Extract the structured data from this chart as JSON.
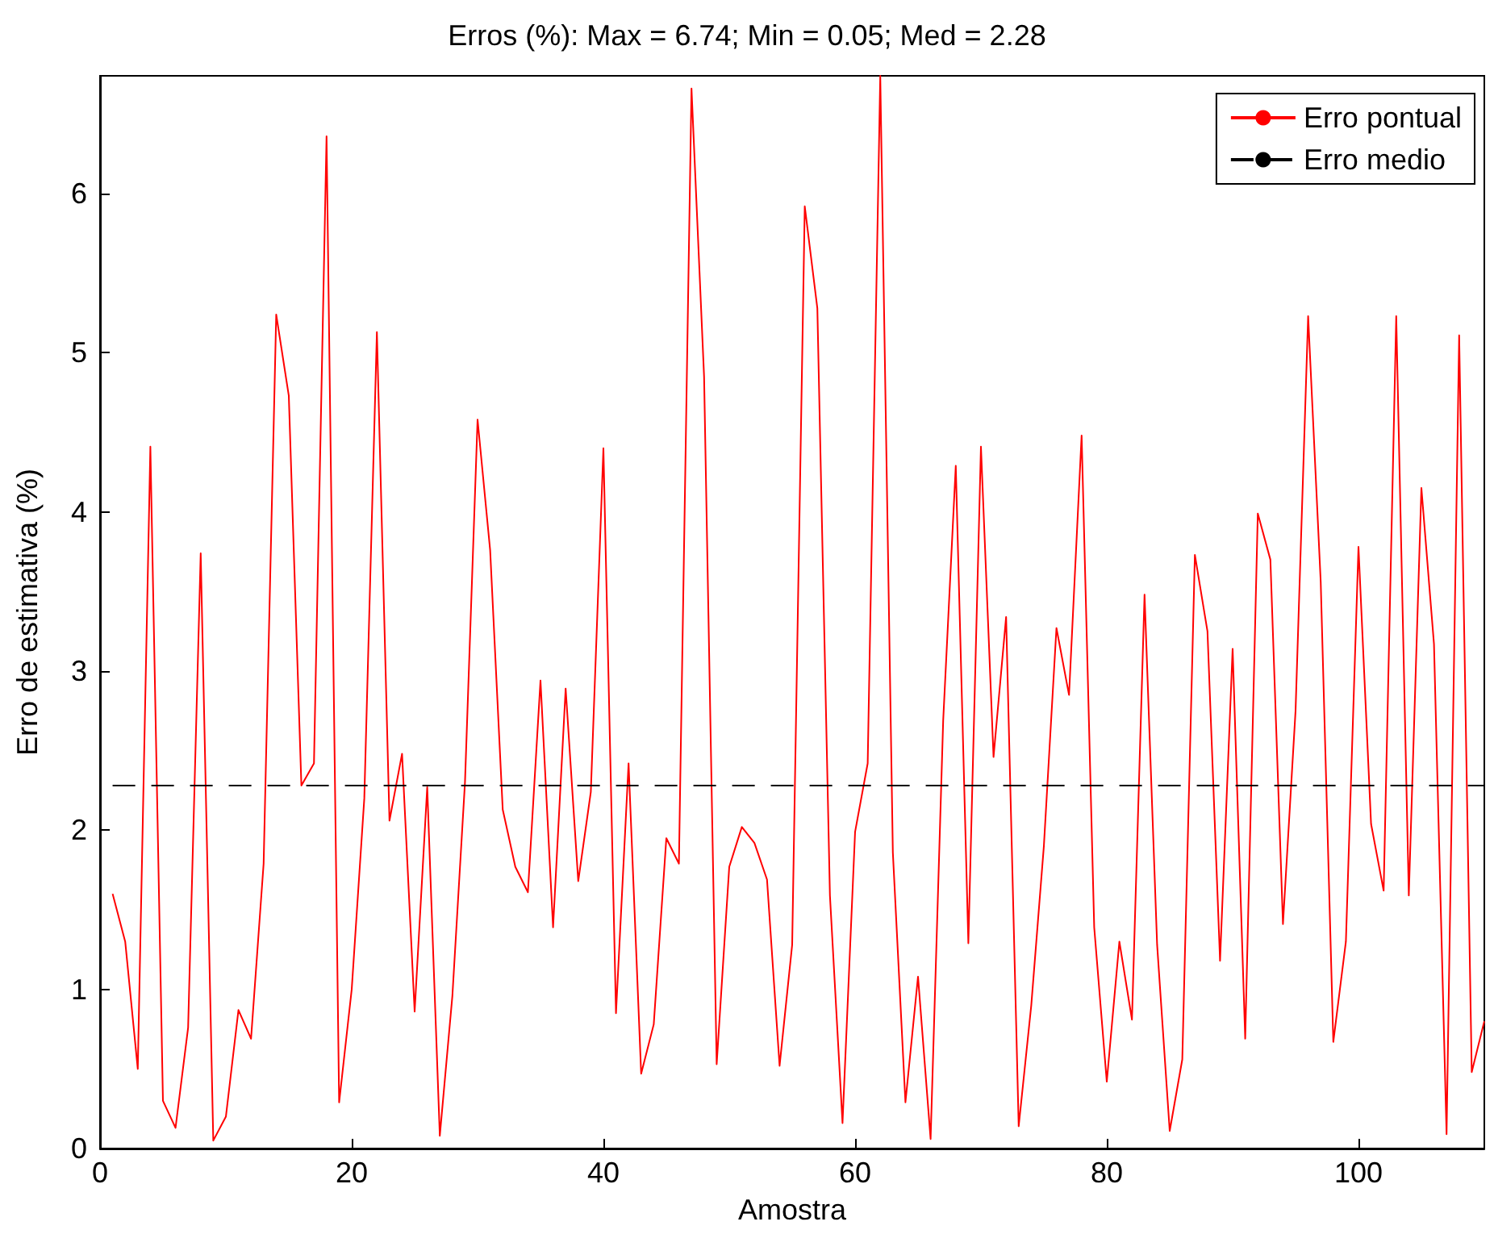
{
  "chart_data": {
    "type": "line",
    "title": "Erros (%): Max = 6.74; Min = 0.05; Med = 2.28",
    "xlabel": "Amostra",
    "ylabel": "Erro de estimativa (%)",
    "x": [
      1,
      2,
      3,
      4,
      5,
      6,
      7,
      8,
      9,
      10,
      11,
      12,
      13,
      14,
      15,
      16,
      17,
      18,
      19,
      20,
      21,
      22,
      23,
      24,
      25,
      26,
      27,
      28,
      29,
      30,
      31,
      32,
      33,
      34,
      35,
      36,
      37,
      38,
      39,
      40,
      41,
      42,
      43,
      44,
      45,
      46,
      47,
      48,
      49,
      50,
      51,
      52,
      53,
      54,
      55,
      56,
      57,
      58,
      59,
      60,
      61,
      62,
      63,
      64,
      65,
      66,
      67,
      68,
      69,
      70,
      71,
      72,
      73,
      74,
      75,
      76,
      77,
      78,
      79,
      80,
      81,
      82,
      83,
      84,
      85,
      86,
      87,
      88,
      89,
      90,
      91,
      92,
      93,
      94,
      95,
      96,
      97,
      98,
      99,
      100,
      101,
      102,
      103,
      104,
      105,
      106,
      107,
      108,
      109,
      110
    ],
    "series": [
      {
        "name": "Erro pontual",
        "color": "#ff0000",
        "line_style": "solid",
        "values": [
          1.6,
          1.3,
          0.5,
          4.41,
          0.3,
          0.13,
          0.76,
          3.74,
          0.05,
          0.2,
          0.87,
          0.69,
          1.79,
          5.24,
          4.73,
          2.28,
          2.42,
          6.36,
          0.29,
          1.0,
          2.2,
          5.13,
          2.06,
          2.48,
          0.86,
          2.27,
          0.08,
          0.96,
          2.3,
          4.58,
          3.76,
          2.13,
          1.77,
          1.61,
          2.94,
          1.39,
          2.89,
          1.68,
          2.24,
          4.4,
          0.85,
          2.42,
          0.47,
          0.78,
          1.95,
          1.79,
          6.66,
          4.85,
          0.53,
          1.77,
          2.02,
          1.92,
          1.69,
          0.52,
          1.28,
          5.92,
          5.28,
          1.59,
          0.16,
          1.99,
          2.42,
          6.74,
          1.86,
          0.29,
          1.08,
          0.06,
          2.69,
          4.29,
          1.29,
          4.41,
          2.46,
          3.34,
          0.14,
          0.9,
          1.9,
          3.27,
          2.85,
          4.48,
          1.39,
          0.42,
          1.3,
          0.81,
          3.48,
          1.28,
          0.11,
          0.56,
          3.73,
          3.25,
          1.18,
          3.14,
          0.69,
          3.99,
          3.7,
          1.41,
          2.75,
          5.23,
          3.56,
          0.67,
          1.3,
          3.78,
          2.04,
          1.62,
          5.23,
          1.59,
          4.15,
          3.17,
          0.09,
          5.11,
          0.48,
          0.8
        ]
      },
      {
        "name": "Erro medio",
        "color": "#000000",
        "line_style": "dashed",
        "x": [
          1,
          110
        ],
        "values": [
          2.28,
          2.28
        ]
      }
    ],
    "xlim": [
      0,
      110
    ],
    "xticks": [
      0,
      20,
      40,
      60,
      80,
      100
    ],
    "ylim": [
      0,
      6.74
    ],
    "yticks": [
      0,
      1,
      2,
      3,
      4,
      5,
      6
    ],
    "grid": false,
    "legend": "top right",
    "marker": "none"
  }
}
